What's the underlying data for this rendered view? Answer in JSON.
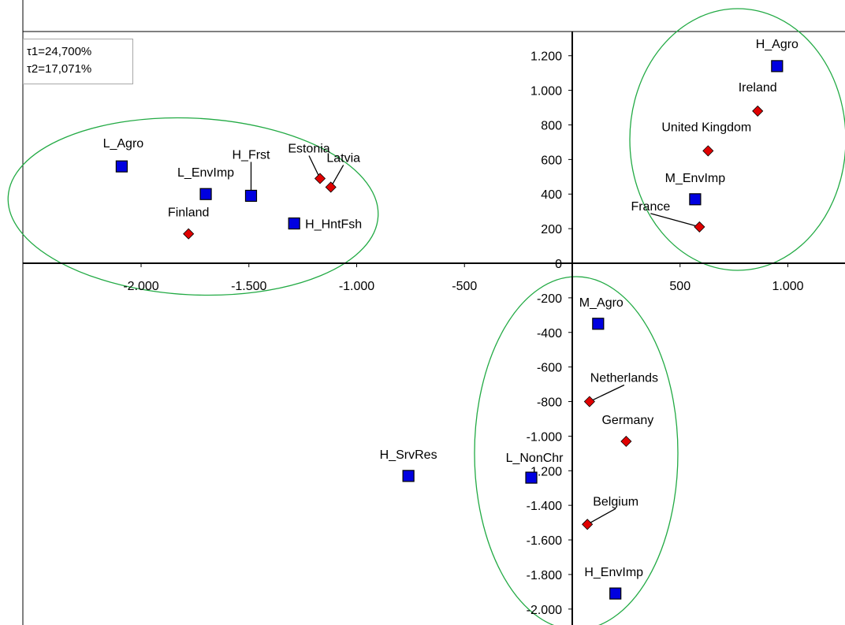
{
  "chart_data": {
    "type": "scatter",
    "title": "",
    "xlabel": "",
    "ylabel": "",
    "xlim": [
      -2300,
      1100
    ],
    "ylim": [
      -2050,
      1300
    ],
    "x_ticks": [
      {
        "value": -2000,
        "label": "-2.000"
      },
      {
        "value": -1500,
        "label": "-1.500"
      },
      {
        "value": -1000,
        "label": "-1.000"
      },
      {
        "value": -500,
        "label": "-500"
      },
      {
        "value": 0,
        "label": "0"
      },
      {
        "value": 500,
        "label": "500"
      },
      {
        "value": 1000,
        "label": "1.000"
      }
    ],
    "y_ticks": [
      {
        "value": 1200,
        "label": "1.200"
      },
      {
        "value": 1000,
        "label": "1.000"
      },
      {
        "value": 800,
        "label": "800"
      },
      {
        "value": 600,
        "label": "600"
      },
      {
        "value": 400,
        "label": "400"
      },
      {
        "value": 200,
        "label": "200"
      },
      {
        "value": 0,
        "label": "0"
      },
      {
        "value": -200,
        "label": "-200"
      },
      {
        "value": -400,
        "label": "-400"
      },
      {
        "value": -600,
        "label": "-600"
      },
      {
        "value": -800,
        "label": "-800"
      },
      {
        "value": -1000,
        "label": "-1.000"
      },
      {
        "value": -1200,
        "label": "-1.200"
      },
      {
        "value": -1400,
        "label": "-1.400"
      },
      {
        "value": -1600,
        "label": "-1.600"
      },
      {
        "value": -1800,
        "label": "-1.800"
      },
      {
        "value": -2000,
        "label": "-2.000"
      }
    ],
    "grid": false,
    "info_box": [
      "τ1=24,700%",
      "τ2=17,071%"
    ],
    "colors": {
      "category_fill": "#0000e0",
      "country_fill": "#e00000",
      "marker_stroke": "#000000",
      "ellipse": "#22aa44"
    },
    "series": [
      {
        "marker": "square",
        "points": [
          {
            "label": "H_Agro",
            "x": 950,
            "y": 1140
          },
          {
            "label": "M_EnvImp",
            "x": 570,
            "y": 370
          },
          {
            "label": "L_Agro",
            "x": -2090,
            "y": 560
          },
          {
            "label": "L_EnvImp",
            "x": -1700,
            "y": 400
          },
          {
            "label": "H_Frst",
            "x": -1490,
            "y": 390
          },
          {
            "label": "H_HntFsh",
            "x": -1290,
            "y": 230
          },
          {
            "label": "M_Agro",
            "x": 120,
            "y": -350
          },
          {
            "label": "H_SrvRes",
            "x": -760,
            "y": -1230
          },
          {
            "label": "L_NonChr",
            "x": -190,
            "y": -1240
          },
          {
            "label": "H_EnvImp",
            "x": 200,
            "y": -1910
          }
        ]
      },
      {
        "marker": "diamond",
        "points": [
          {
            "label": "Ireland",
            "x": 860,
            "y": 880
          },
          {
            "label": "United Kingdom",
            "x": 630,
            "y": 650
          },
          {
            "label": "France",
            "x": 590,
            "y": 210
          },
          {
            "label": "Estonia",
            "x": -1170,
            "y": 490
          },
          {
            "label": "Latvia",
            "x": -1120,
            "y": 440
          },
          {
            "label": "Finland",
            "x": -1780,
            "y": 170
          },
          {
            "label": "Netherlands",
            "x": 80,
            "y": -800
          },
          {
            "label": "Germany",
            "x": 250,
            "y": -1030
          },
          {
            "label": "Belgium",
            "x": 70,
            "y": -1510
          }
        ]
      }
    ]
  }
}
